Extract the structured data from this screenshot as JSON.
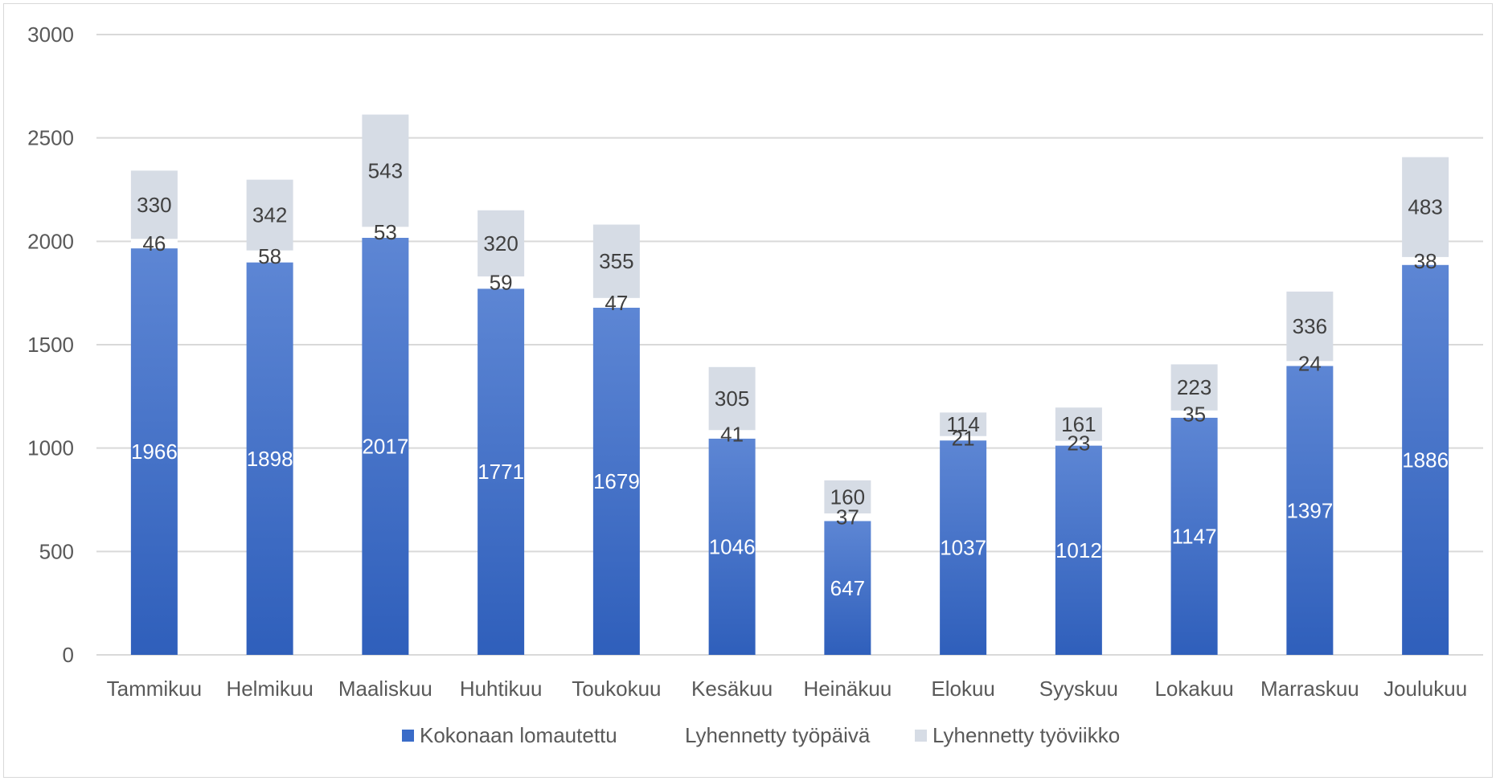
{
  "chart_data": {
    "type": "bar",
    "stacked": true,
    "categories": [
      "Tammikuu",
      "Helmikuu",
      "Maaliskuu",
      "Huhtikuu",
      "Toukokuu",
      "Kesäkuu",
      "Heinäkuu",
      "Elokuu",
      "Syyskuu",
      "Lokakuu",
      "Marraskuu",
      "Joulukuu"
    ],
    "series": [
      {
        "name": "Kokonaan lomautettu",
        "values": [
          1966,
          1898,
          2017,
          1771,
          1679,
          1046,
          647,
          1037,
          1012,
          1147,
          1397,
          1886
        ],
        "color": "#3a6cc8"
      },
      {
        "name": "Lyhennetty työpäivä",
        "values": [
          46,
          58,
          53,
          59,
          47,
          41,
          37,
          21,
          23,
          35,
          24,
          38
        ],
        "color": "#ffffff"
      },
      {
        "name": "Lyhennetty työviikko",
        "values": [
          330,
          342,
          543,
          320,
          355,
          305,
          160,
          114,
          161,
          223,
          336,
          483
        ],
        "color": "#d6dce5"
      }
    ],
    "yticks": [
      0,
      500,
      1000,
      1500,
      2000,
      2500,
      3000
    ],
    "ylim": [
      0,
      3000
    ],
    "grid": true,
    "legend": "bottom",
    "title": "",
    "xlabel": "",
    "ylabel": ""
  }
}
